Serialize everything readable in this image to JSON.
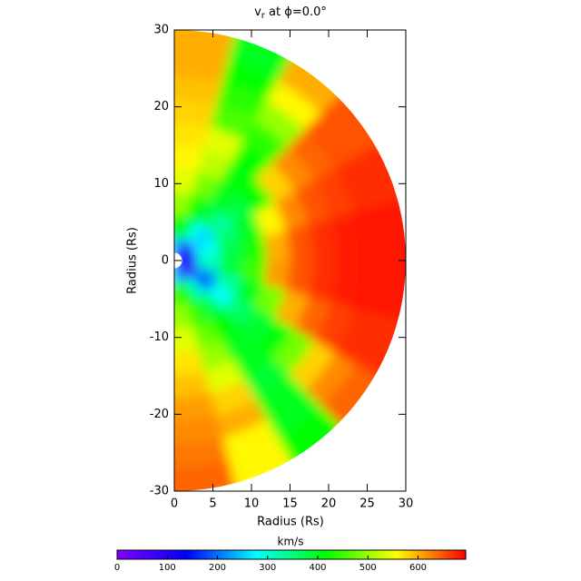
{
  "chart_data": {
    "type": "polar-heatmap",
    "title_parts": [
      "v",
      "r",
      " at ϕ=0.0°"
    ],
    "xlabel": "Radius (Rs)",
    "ylabel": "Radius (Rs)",
    "xlim": [
      0,
      30
    ],
    "ylim": [
      -30,
      30
    ],
    "xticks": [
      0,
      5,
      10,
      15,
      20,
      25,
      30
    ],
    "yticks": [
      -30,
      -20,
      -10,
      0,
      10,
      20,
      30
    ],
    "r_edges": [
      1,
      3,
      6,
      9,
      12,
      15,
      18,
      21,
      24,
      27,
      30
    ],
    "theta_edges": [
      90,
      75,
      60,
      45,
      30,
      15,
      0,
      -15,
      -30,
      -45,
      -60,
      -75,
      -90
    ],
    "values": [
      [
        250,
        420,
        500,
        540,
        560,
        570,
        580,
        590,
        600,
        600
      ],
      [
        200,
        380,
        420,
        480,
        520,
        540,
        460,
        440,
        420,
        400
      ],
      [
        120,
        280,
        380,
        400,
        410,
        420,
        440,
        500,
        560,
        600
      ],
      [
        80,
        250,
        330,
        380,
        420,
        580,
        620,
        640,
        650,
        650
      ],
      [
        100,
        280,
        360,
        400,
        560,
        620,
        650,
        660,
        670,
        670
      ],
      [
        120,
        300,
        380,
        430,
        600,
        650,
        670,
        680,
        685,
        685
      ],
      [
        150,
        320,
        390,
        450,
        610,
        650,
        670,
        680,
        685,
        685
      ],
      [
        80,
        220,
        330,
        400,
        480,
        600,
        640,
        660,
        670,
        670
      ],
      [
        60,
        180,
        280,
        360,
        390,
        410,
        480,
        580,
        620,
        640
      ],
      [
        100,
        300,
        380,
        420,
        400,
        400,
        390,
        400,
        400,
        420
      ],
      [
        200,
        400,
        440,
        470,
        500,
        540,
        580,
        600,
        560,
        560
      ],
      [
        250,
        450,
        500,
        540,
        570,
        590,
        610,
        620,
        630,
        640
      ]
    ],
    "colormap": [
      "#8000ff",
      "#0000ff",
      "#00ffff",
      "#00ff00",
      "#ffff00",
      "#ff0000"
    ],
    "colorbar_label": "km/s",
    "clim": [
      0,
      695
    ],
    "cticks": [
      0,
      100,
      200,
      300,
      400,
      500,
      600
    ]
  }
}
